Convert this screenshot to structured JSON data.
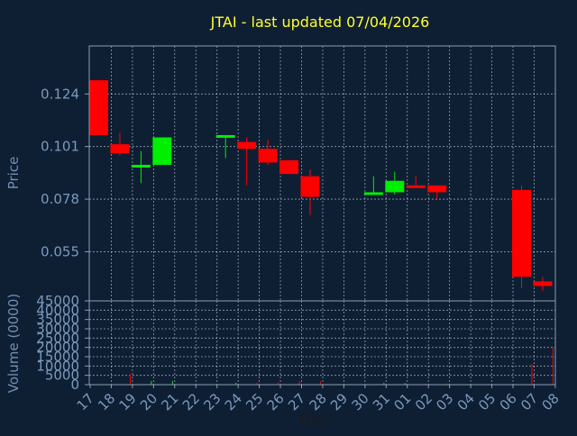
{
  "colors": {
    "background": "#0f1f33",
    "panel": "#0f1f33",
    "axis": "#8a9db5",
    "grid": "#c8d2de",
    "title": "#ffff33",
    "text": "#7a99bd",
    "label": "#6f8fb4",
    "up": "#00ee00",
    "down": "#ff0000"
  },
  "chart_data": {
    "type": "candlestick",
    "title": "JTAI - last updated 07/04/2026",
    "xlabel": "Day",
    "price_panel": {
      "ylabel": "Price",
      "ylim": [
        0.0335,
        0.145
      ],
      "yticks": [
        0.055,
        0.078,
        0.101,
        0.124
      ],
      "ytick_labels": [
        "0.055",
        "0.078",
        "0.101",
        "0.124"
      ]
    },
    "volume_panel": {
      "ylabel": "Volume (0000)",
      "ylim": [
        0,
        45000
      ],
      "yticks": [
        0,
        5000,
        10000,
        15000,
        20000,
        25000,
        30000,
        35000,
        40000,
        45000
      ],
      "ytick_labels": [
        "0",
        "5000",
        "10000",
        "15000",
        "20000",
        "25000",
        "30000",
        "35000",
        "40000",
        "45000"
      ]
    },
    "x_tick_labels": [
      "17",
      "18",
      "19",
      "20",
      "21",
      "22",
      "23",
      "24",
      "25",
      "26",
      "27",
      "28",
      "29",
      "30",
      "31",
      "01",
      "02",
      "03",
      "04",
      "05",
      "06",
      "07",
      "08"
    ],
    "grid": true,
    "candles": [
      {
        "day": "17",
        "open": 0.13,
        "high": 0.13,
        "low": 0.106,
        "close": 0.106,
        "volume": 0
      },
      {
        "day": "18",
        "open": 0.102,
        "high": 0.107,
        "low": 0.097,
        "close": 0.098,
        "volume": 5500
      },
      {
        "day": "19",
        "open": 0.092,
        "high": 0.099,
        "low": 0.085,
        "close": 0.093,
        "volume": 2000
      },
      {
        "day": "20",
        "open": 0.093,
        "high": 0.105,
        "low": 0.093,
        "close": 0.105,
        "volume": 2000
      },
      {
        "day": "23",
        "open": 0.105,
        "high": 0.106,
        "low": 0.096,
        "close": 0.106,
        "volume": 1000
      },
      {
        "day": "24",
        "open": 0.103,
        "high": 0.105,
        "low": 0.084,
        "close": 0.1,
        "volume": 1200
      },
      {
        "day": "25",
        "open": 0.1,
        "high": 0.104,
        "low": 0.093,
        "close": 0.094,
        "volume": 1200
      },
      {
        "day": "26",
        "open": 0.095,
        "high": 0.095,
        "low": 0.089,
        "close": 0.089,
        "volume": 2000
      },
      {
        "day": "27",
        "open": 0.088,
        "high": 0.091,
        "low": 0.071,
        "close": 0.079,
        "volume": 1800
      },
      {
        "day": "30",
        "open": 0.08,
        "high": 0.088,
        "low": 0.08,
        "close": 0.081,
        "volume": 1000
      },
      {
        "day": "31",
        "open": 0.081,
        "high": 0.09,
        "low": 0.08,
        "close": 0.086,
        "volume": 800
      },
      {
        "day": "01",
        "open": 0.084,
        "high": 0.088,
        "low": 0.083,
        "close": 0.083,
        "volume": 600
      },
      {
        "day": "02",
        "open": 0.084,
        "high": 0.084,
        "low": 0.078,
        "close": 0.081,
        "volume": 600
      },
      {
        "day": "06",
        "open": 0.082,
        "high": 0.084,
        "low": 0.039,
        "close": 0.044,
        "volume": 11000
      },
      {
        "day": "07",
        "open": 0.042,
        "high": 0.044,
        "low": 0.038,
        "close": 0.04,
        "volume": 20000
      }
    ]
  }
}
